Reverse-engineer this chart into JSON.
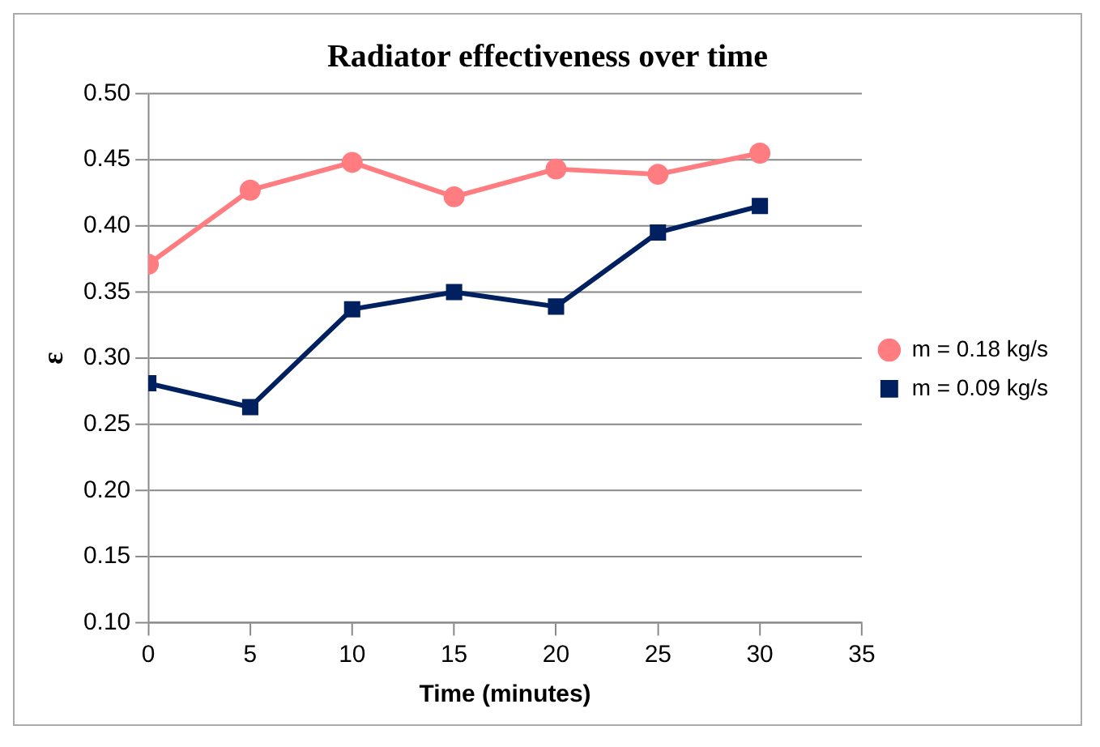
{
  "chart_data": {
    "type": "line",
    "title": "Radiator effectiveness over time",
    "xlabel": "Time (minutes)",
    "ylabel": "ε",
    "x": [
      0,
      5,
      10,
      15,
      20,
      25,
      30
    ],
    "series": [
      {
        "name": "m = 0.18 kg/s",
        "color": "#ff7c80",
        "marker": "circle",
        "values": [
          0.371,
          0.427,
          0.448,
          0.422,
          0.443,
          0.439,
          0.455
        ]
      },
      {
        "name": "m = 0.09 kg/s",
        "color": "#002060",
        "marker": "square",
        "values": [
          0.281,
          0.263,
          0.337,
          0.35,
          0.339,
          0.395,
          0.415
        ]
      }
    ],
    "xlim": [
      0,
      35
    ],
    "xticks": [
      0,
      5,
      10,
      15,
      20,
      25,
      30,
      35
    ],
    "ylim": [
      0.1,
      0.5
    ],
    "yticks": [
      {
        "value": 0.1,
        "label": "0.10"
      },
      {
        "value": 0.15,
        "label": "0.15"
      },
      {
        "value": 0.2,
        "label": "0.20"
      },
      {
        "value": 0.25,
        "label": "0.25"
      },
      {
        "value": 0.3,
        "label": "0.30"
      },
      {
        "value": 0.35,
        "label": "0.35"
      },
      {
        "value": 0.4,
        "label": "0.40"
      },
      {
        "value": 0.45,
        "label": "0.45"
      },
      {
        "value": 0.5,
        "label": "0.50"
      }
    ],
    "grid": "y",
    "legend": "right",
    "line_style": "solid"
  }
}
